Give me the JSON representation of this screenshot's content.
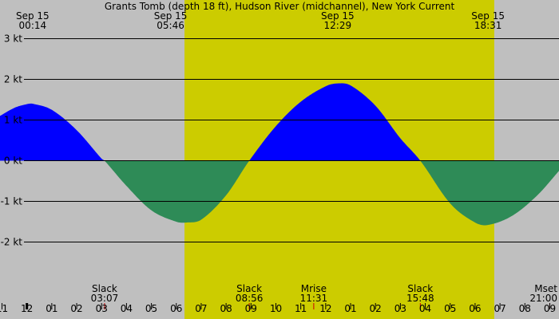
{
  "chart_data": {
    "type": "area",
    "title": "Grants Tomb (depth 18 ft), Hudson River (midchannel), New York Current",
    "y_unit": "kt",
    "ylim": [
      -2.95,
      3.95
    ],
    "xlim_hours": [
      -13.08,
      9.37
    ],
    "y_ticks": [
      {
        "value": 3,
        "label": "3 kt"
      },
      {
        "value": 2,
        "label": "2 kt"
      },
      {
        "value": 1,
        "label": "1 kt"
      },
      {
        "value": 0,
        "label": "0 kt"
      },
      {
        "value": -1,
        "label": "-1 kt"
      },
      {
        "value": -2,
        "label": "-2 kt"
      }
    ],
    "x_tick_labels": [
      "11",
      "12",
      "01",
      "02",
      "03",
      "04",
      "05",
      "06",
      "07",
      "08",
      "09",
      "10",
      "11",
      "12",
      "01",
      "02",
      "03",
      "04",
      "05",
      "06",
      "07",
      "08",
      "09"
    ],
    "daylight": {
      "start": -5.67,
      "end": 6.77
    },
    "top_labels": [
      {
        "date": "Sep 15",
        "time": "00:14",
        "hour": -11.77
      },
      {
        "date": "Sep 15",
        "time": "05:46",
        "hour": -6.23
      },
      {
        "date": "Sep 15",
        "time": "12:29",
        "hour": 0.48
      },
      {
        "date": "Sep 15",
        "time": "18:31",
        "hour": 6.52
      }
    ],
    "events": [
      {
        "name": "Slack",
        "time": "03:07",
        "hour": -8.88
      },
      {
        "name": "Slack",
        "time": "08:56",
        "hour": -3.07
      },
      {
        "name": "Mrise",
        "time": "11:31",
        "hour": -0.48
      },
      {
        "name": "Slack",
        "time": "15:48",
        "hour": 3.8
      },
      {
        "name": "Mset",
        "time": "21:00",
        "hour": 9.0
      }
    ],
    "series": [
      {
        "x": [
          -13.08,
          -12.5,
          -12.0,
          -11.77,
          -11.0,
          -10.0,
          -9.0,
          -8.88,
          -8.0,
          -7.0,
          -6.0,
          -5.6,
          -5.0,
          -4.0,
          -3.07,
          -2.0,
          -1.0,
          0.0,
          0.48,
          1.0,
          2.0,
          3.0,
          3.8,
          5.0,
          6.0,
          6.52,
          7.5,
          8.5,
          9.37
        ],
        "y": [
          1.1,
          1.3,
          1.39,
          1.4,
          1.25,
          0.75,
          0.05,
          0.0,
          -0.62,
          -1.22,
          -1.5,
          -1.52,
          -1.45,
          -0.85,
          0.0,
          0.85,
          1.45,
          1.83,
          1.9,
          1.85,
          1.35,
          0.55,
          0.0,
          -1.05,
          -1.52,
          -1.58,
          -1.35,
          -0.85,
          -0.25
        ]
      }
    ],
    "colors": {
      "background": "#bfbfbf",
      "daylight": "#cccc00",
      "flood": "#0000ff",
      "ebb": "#2e8b57",
      "gridline": "#000000",
      "marker": "#cc0000"
    }
  }
}
